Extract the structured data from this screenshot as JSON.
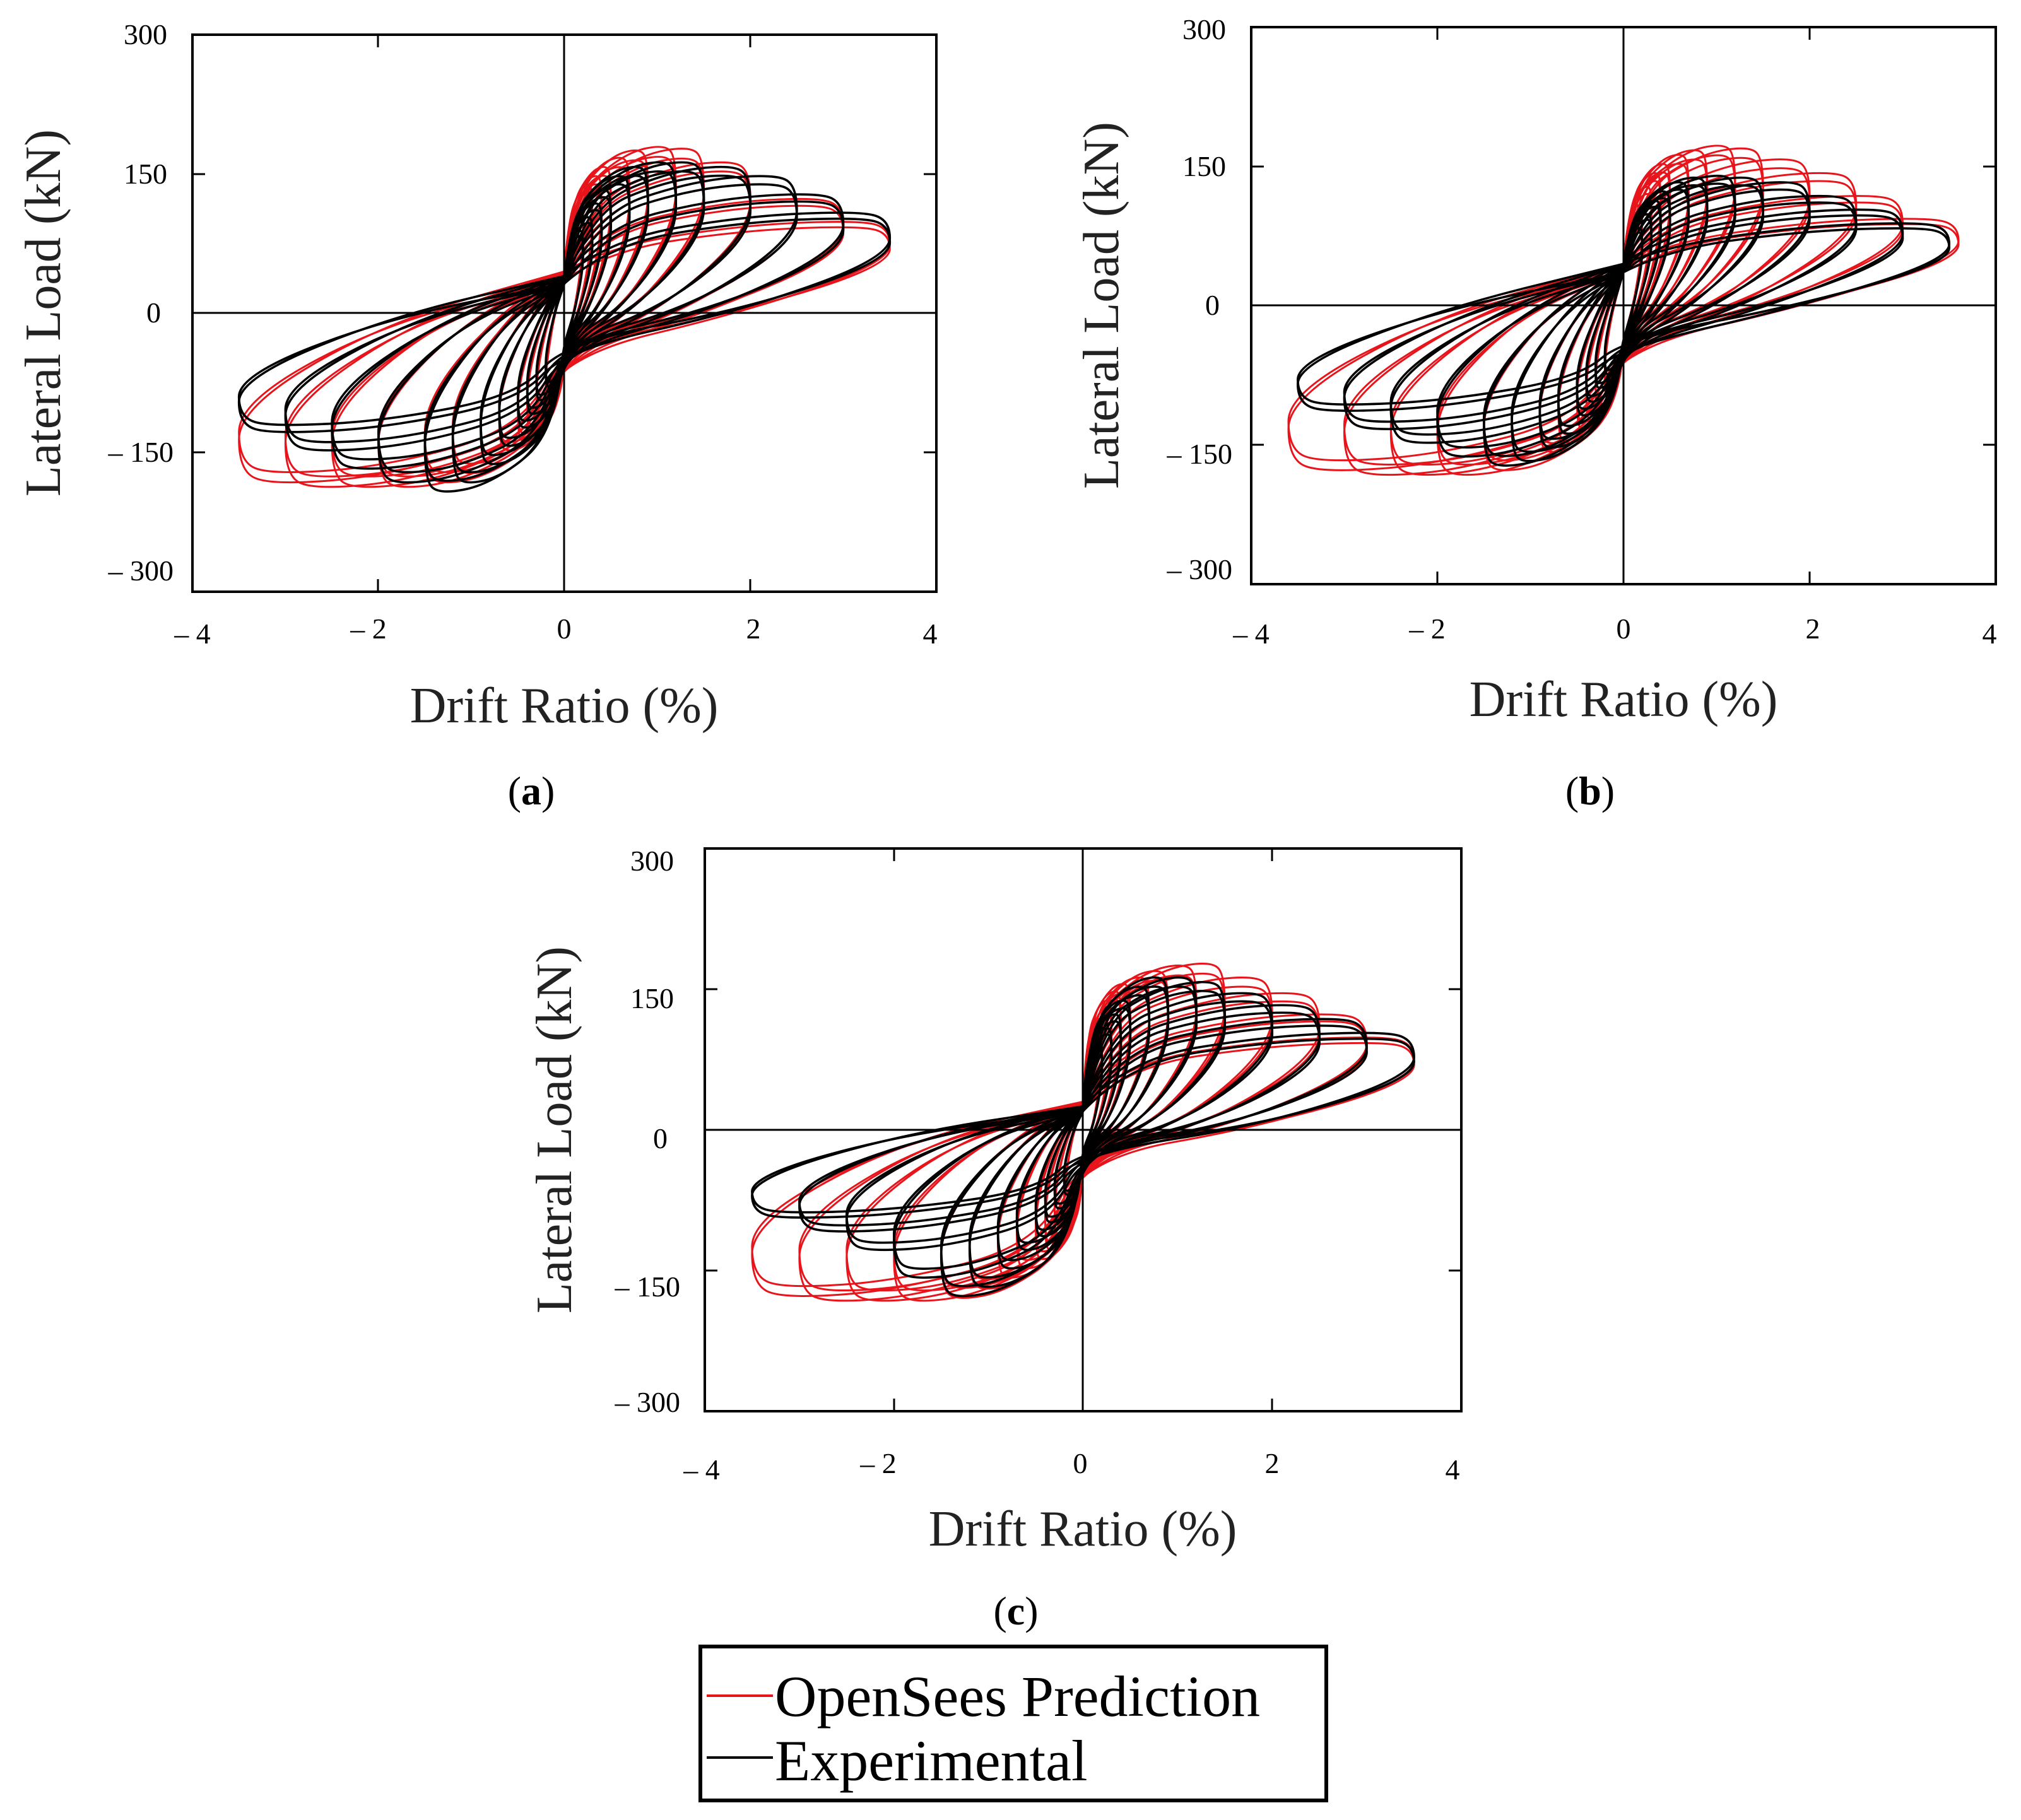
{
  "legend": {
    "items": [
      {
        "label": "OpenSees Prediction",
        "color": "#e8141b"
      },
      {
        "label": "Experimental",
        "color": "#000000"
      }
    ]
  },
  "chart_data": [
    {
      "id": "a",
      "type": "line",
      "panel_label": "a",
      "xlabel": "Drift Ratio (%)",
      "ylabel": "Lateral Load (kN)",
      "xlim": [
        -4,
        4
      ],
      "ylim": [
        -300,
        300
      ],
      "xticks": [
        -4,
        -2,
        0,
        2,
        4
      ],
      "xtick_labels": [
        "– 4",
        "– 2",
        "0",
        "2",
        "4"
      ],
      "yticks": [
        300,
        150,
        0,
        -150,
        -300
      ],
      "ytick_labels": [
        "300",
        "150",
        "0",
        "– 150",
        "– 300"
      ],
      "series": [
        {
          "name": "OpenSees Prediction",
          "color": "#e8141b",
          "drifts": [
            0.2,
            0.3,
            0.4,
            0.5,
            0.7,
            0.9,
            1.2,
            1.5,
            2.0,
            2.5,
            3.0,
            3.5
          ],
          "peak_pos_load": [
            120,
            140,
            150,
            160,
            170,
            178,
            182,
            180,
            165,
            150,
            125,
            100
          ],
          "peak_neg_load": [
            -110,
            -120,
            -130,
            -140,
            -150,
            -165,
            -175,
            -185,
            -190,
            -190,
            -190,
            -185
          ],
          "residual_load": 45
        },
        {
          "name": "Experimental",
          "color": "#000000",
          "drifts": [
            0.2,
            0.3,
            0.4,
            0.5,
            0.7,
            0.9,
            1.2,
            1.5,
            2.0,
            2.5,
            3.0,
            3.5
          ],
          "peak_pos_load": [
            90,
            105,
            120,
            135,
            150,
            160,
            165,
            165,
            160,
            150,
            130,
            110
          ],
          "peak_neg_load": [
            -80,
            -95,
            -110,
            -125,
            -145,
            -165,
            -185,
            -195,
            -185,
            -170,
            -150,
            -130
          ],
          "residual_load": 40
        }
      ]
    },
    {
      "id": "b",
      "type": "line",
      "panel_label": "b",
      "xlabel": "Drift Ratio (%)",
      "ylabel": "Lateral Load (kN)",
      "xlim": [
        -4,
        4
      ],
      "ylim": [
        -300,
        300
      ],
      "xticks": [
        -4,
        -2,
        0,
        2,
        4
      ],
      "xtick_labels": [
        "– 4",
        "– 2",
        "0",
        "2",
        "4"
      ],
      "yticks": [
        300,
        150,
        0,
        -150,
        -300
      ],
      "ytick_labels": [
        "300",
        "150",
        "0",
        "– 150",
        "– 300"
      ],
      "series": [
        {
          "name": "OpenSees Prediction",
          "color": "#e8141b",
          "drifts": [
            0.2,
            0.3,
            0.4,
            0.5,
            0.7,
            0.9,
            1.2,
            1.5,
            2.0,
            2.5,
            3.0,
            3.6
          ],
          "peak_pos_load": [
            110,
            130,
            145,
            155,
            165,
            170,
            175,
            172,
            160,
            145,
            120,
            95
          ],
          "peak_neg_load": [
            -100,
            -115,
            -125,
            -135,
            -150,
            -160,
            -170,
            -180,
            -185,
            -185,
            -185,
            -180
          ],
          "residual_load": 45
        },
        {
          "name": "Experimental",
          "color": "#000000",
          "drifts": [
            0.2,
            0.3,
            0.4,
            0.5,
            0.7,
            0.9,
            1.2,
            1.5,
            2.0,
            2.5,
            3.0,
            3.5
          ],
          "peak_pos_load": [
            85,
            100,
            115,
            125,
            135,
            140,
            142,
            140,
            135,
            120,
            105,
            90
          ],
          "peak_neg_load": [
            -75,
            -90,
            -105,
            -120,
            -140,
            -155,
            -170,
            -175,
            -165,
            -150,
            -135,
            -115
          ],
          "residual_load": 45
        }
      ]
    },
    {
      "id": "c",
      "type": "line",
      "panel_label": "c",
      "xlabel": "Drift Ratio (%)",
      "ylabel": "Lateral Load (kN)",
      "xlim": [
        -4,
        4
      ],
      "ylim": [
        -300,
        300
      ],
      "xticks": [
        -4,
        -2,
        0,
        2,
        4
      ],
      "xtick_labels": [
        "– 4",
        "– 2",
        "0",
        "2",
        "4"
      ],
      "yticks": [
        300,
        150,
        0,
        -150,
        -300
      ],
      "ytick_labels": [
        "300",
        "150",
        "0",
        "– 150",
        "– 300"
      ],
      "series": [
        {
          "name": "OpenSees Prediction",
          "color": "#e8141b",
          "drifts": [
            0.2,
            0.3,
            0.4,
            0.5,
            0.7,
            0.9,
            1.2,
            1.5,
            2.0,
            2.5,
            3.0,
            3.5
          ],
          "peak_pos_load": [
            120,
            140,
            150,
            158,
            165,
            172,
            178,
            180,
            165,
            148,
            125,
            100
          ],
          "peak_neg_load": [
            -110,
            -120,
            -130,
            -140,
            -150,
            -160,
            -172,
            -182,
            -185,
            -185,
            -185,
            -180
          ],
          "residual_load": 30
        },
        {
          "name": "Experimental",
          "color": "#000000",
          "drifts": [
            0.2,
            0.3,
            0.4,
            0.5,
            0.7,
            0.9,
            1.2,
            1.5,
            2.0,
            2.5,
            3.0,
            3.5
          ],
          "peak_pos_load": [
            95,
            110,
            125,
            140,
            155,
            165,
            165,
            160,
            148,
            135,
            120,
            105
          ],
          "peak_neg_load": [
            -70,
            -85,
            -100,
            -115,
            -130,
            -150,
            -170,
            -180,
            -160,
            -130,
            -110,
            -95
          ],
          "residual_load": 25
        }
      ]
    }
  ]
}
